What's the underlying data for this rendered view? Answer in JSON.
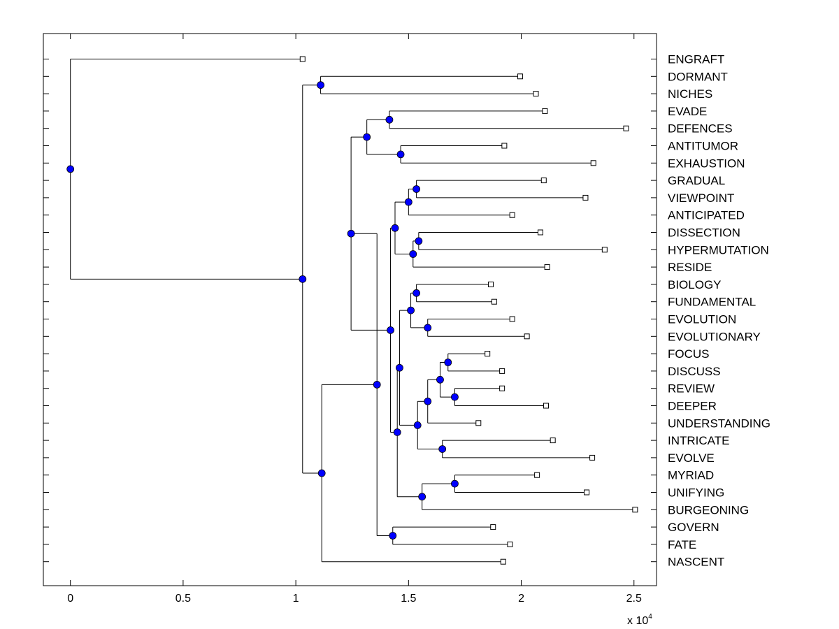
{
  "chart_data": {
    "type": "dendrogram",
    "orientation": "horizontal",
    "xlim": [
      -1200,
      26000
    ],
    "x_ticks": [
      {
        "value": 0,
        "label": "0"
      },
      {
        "value": 5000,
        "label": "0.5"
      },
      {
        "value": 10000,
        "label": "1"
      },
      {
        "value": 15000,
        "label": "1.5"
      },
      {
        "value": 20000,
        "label": "2"
      },
      {
        "value": 25000,
        "label": "2.5"
      }
    ],
    "x_scale_base": "x 10",
    "x_scale_exponent": "4",
    "leaves": [
      {
        "name": "ENGRAFT",
        "x": 10300
      },
      {
        "name": "DORMANT",
        "x": 19950
      },
      {
        "name": "NICHES",
        "x": 20650
      },
      {
        "name": "EVADE",
        "x": 21050
      },
      {
        "name": "DEFENCES",
        "x": 24650
      },
      {
        "name": "ANTITUMOR",
        "x": 19250
      },
      {
        "name": "EXHAUSTION",
        "x": 23200
      },
      {
        "name": "GRADUAL",
        "x": 21000
      },
      {
        "name": "VIEWPOINT",
        "x": 22850
      },
      {
        "name": "ANTICIPATED",
        "x": 19600
      },
      {
        "name": "DISSECTION",
        "x": 20850
      },
      {
        "name": "HYPERMUTATION",
        "x": 23700
      },
      {
        "name": "RESIDE",
        "x": 21150
      },
      {
        "name": "BIOLOGY",
        "x": 18650
      },
      {
        "name": "FUNDAMENTAL",
        "x": 18800
      },
      {
        "name": "EVOLUTION",
        "x": 19600
      },
      {
        "name": "EVOLUTIONARY",
        "x": 20250
      },
      {
        "name": "FOCUS",
        "x": 18500
      },
      {
        "name": "DISCUSS",
        "x": 19150
      },
      {
        "name": "REVIEW",
        "x": 19150
      },
      {
        "name": "DEEPER",
        "x": 21100
      },
      {
        "name": "UNDERSTANDING",
        "x": 18100
      },
      {
        "name": "INTRICATE",
        "x": 21400
      },
      {
        "name": "EVOLVE",
        "x": 23150
      },
      {
        "name": "MYRIAD",
        "x": 20700
      },
      {
        "name": "UNIFYING",
        "x": 22900
      },
      {
        "name": "BURGEONING",
        "x": 25050
      },
      {
        "name": "GOVERN",
        "x": 18750
      },
      {
        "name": "FATE",
        "x": 19500
      },
      {
        "name": "NASCENT",
        "x": 19200
      }
    ],
    "nodes": [
      {
        "id": "n1",
        "x": 11100,
        "children": [
          "L1",
          "L2"
        ]
      },
      {
        "id": "n2",
        "x": 14150,
        "children": [
          "L3",
          "L4"
        ]
      },
      {
        "id": "n3",
        "x": 14650,
        "children": [
          "L5",
          "L6"
        ]
      },
      {
        "id": "n4",
        "x": 13150,
        "children": [
          "n2",
          "n3"
        ]
      },
      {
        "id": "n5",
        "x": 15350,
        "children": [
          "L7",
          "L8"
        ]
      },
      {
        "id": "n6",
        "x": 15000,
        "children": [
          "n5",
          "L9"
        ]
      },
      {
        "id": "n7",
        "x": 15450,
        "children": [
          "L10",
          "L11"
        ]
      },
      {
        "id": "n8",
        "x": 15200,
        "children": [
          "n7",
          "L12"
        ]
      },
      {
        "id": "n9",
        "x": 14400,
        "children": [
          "n6",
          "n8"
        ]
      },
      {
        "id": "n10",
        "x": 15350,
        "children": [
          "L13",
          "L14"
        ]
      },
      {
        "id": "n11",
        "x": 15850,
        "children": [
          "L15",
          "L16"
        ]
      },
      {
        "id": "n12",
        "x": 15100,
        "children": [
          "n10",
          "n11"
        ]
      },
      {
        "id": "n13",
        "x": 16750,
        "children": [
          "L17",
          "L18"
        ]
      },
      {
        "id": "n14",
        "x": 17050,
        "children": [
          "L19",
          "L20"
        ]
      },
      {
        "id": "n15",
        "x": 16400,
        "children": [
          "n13",
          "n14"
        ]
      },
      {
        "id": "n16",
        "x": 15850,
        "children": [
          "n15",
          "L21"
        ]
      },
      {
        "id": "n17",
        "x": 16500,
        "children": [
          "L22",
          "L23"
        ]
      },
      {
        "id": "n18",
        "x": 15400,
        "children": [
          "n16",
          "n17"
        ]
      },
      {
        "id": "n19",
        "x": 14600,
        "children": [
          "n12",
          "n18"
        ]
      },
      {
        "id": "n20",
        "x": 17050,
        "children": [
          "L24",
          "L25"
        ]
      },
      {
        "id": "n21",
        "x": 15600,
        "children": [
          "n20",
          "L26"
        ]
      },
      {
        "id": "n22",
        "x": 14500,
        "children": [
          "n19",
          "n21"
        ]
      },
      {
        "id": "n23",
        "x": 14200,
        "children": [
          "n9",
          "n22"
        ]
      },
      {
        "id": "n24",
        "x": 12450,
        "children": [
          "n4",
          "n23"
        ]
      },
      {
        "id": "n25",
        "x": 14300,
        "children": [
          "L27",
          "L28"
        ]
      },
      {
        "id": "n26",
        "x": 13600,
        "children": [
          "n24",
          "n25"
        ]
      },
      {
        "id": "n27",
        "x": 11150,
        "children": [
          "n26",
          "L29"
        ]
      },
      {
        "id": "n28",
        "x": 10300,
        "children": [
          "n1",
          "n27"
        ]
      },
      {
        "id": "n29",
        "x": 0,
        "children": [
          "L0",
          "n28"
        ]
      }
    ]
  }
}
